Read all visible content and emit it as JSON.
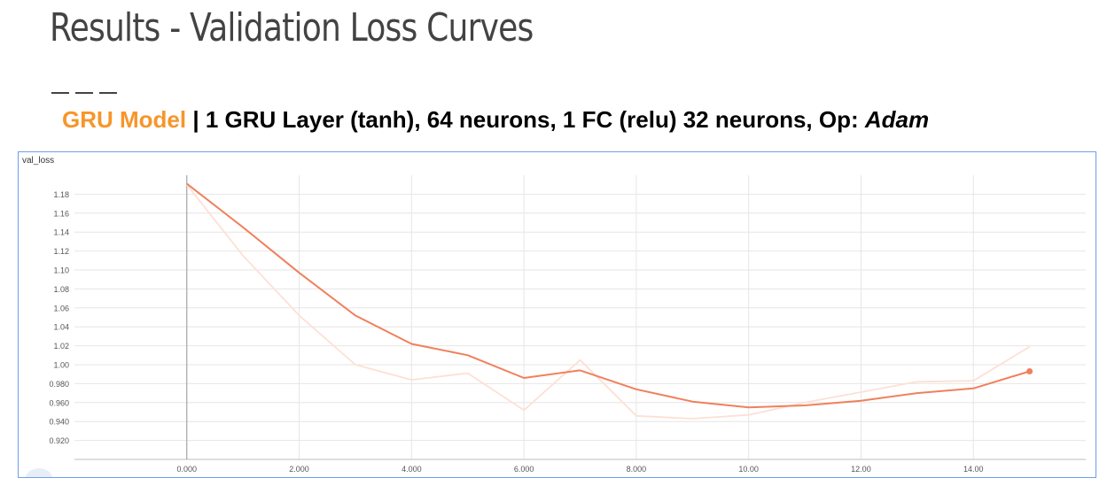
{
  "slide": {
    "title": "Results - Validation Loss Curves",
    "subtitle_model": "GRU Model",
    "subtitle_rest": " | 1 GRU Layer (tanh), 64 neurons, 1 FC (relu) 32 neurons, Op: ",
    "subtitle_optimizer": "Adam"
  },
  "chart_data": {
    "type": "line",
    "title": "val_loss",
    "xlabel": "",
    "ylabel": "",
    "x_ticks": [
      "0.000",
      "2.000",
      "4.000",
      "6.000",
      "8.000",
      "10.00",
      "12.00",
      "14.00"
    ],
    "x_tick_values": [
      0,
      2,
      4,
      6,
      8,
      10,
      12,
      14
    ],
    "y_ticks": [
      "1.18",
      "1.16",
      "1.14",
      "1.12",
      "1.10",
      "1.08",
      "1.06",
      "1.04",
      "1.02",
      "1.00",
      "0.980",
      "0.960",
      "0.940",
      "0.920"
    ],
    "y_tick_values": [
      1.18,
      1.16,
      1.14,
      1.12,
      1.1,
      1.08,
      1.06,
      1.04,
      1.02,
      1.0,
      0.98,
      0.96,
      0.94,
      0.92
    ],
    "xlim": [
      -2,
      16
    ],
    "ylim": [
      0.9,
      1.2
    ],
    "grid": true,
    "series": [
      {
        "role": "raw",
        "color": "#fde0d6",
        "x": [
          0,
          1,
          2,
          3,
          4,
          5,
          6,
          7,
          8,
          9,
          10,
          11,
          12,
          13,
          14,
          15
        ],
        "values": [
          1.19,
          1.115,
          1.052,
          1.0,
          0.984,
          0.991,
          0.952,
          1.005,
          0.946,
          0.943,
          0.947,
          0.96,
          0.971,
          0.982,
          0.983,
          1.019
        ]
      },
      {
        "role": "smoothed",
        "color": "#f0805c",
        "x": [
          0,
          1,
          2,
          3,
          4,
          5,
          6,
          7,
          8,
          9,
          10,
          11,
          12,
          13,
          14,
          15
        ],
        "values": [
          1.191,
          1.145,
          1.097,
          1.052,
          1.022,
          1.01,
          0.986,
          0.994,
          0.974,
          0.961,
          0.955,
          0.957,
          0.962,
          0.97,
          0.975,
          0.993
        ]
      }
    ]
  }
}
